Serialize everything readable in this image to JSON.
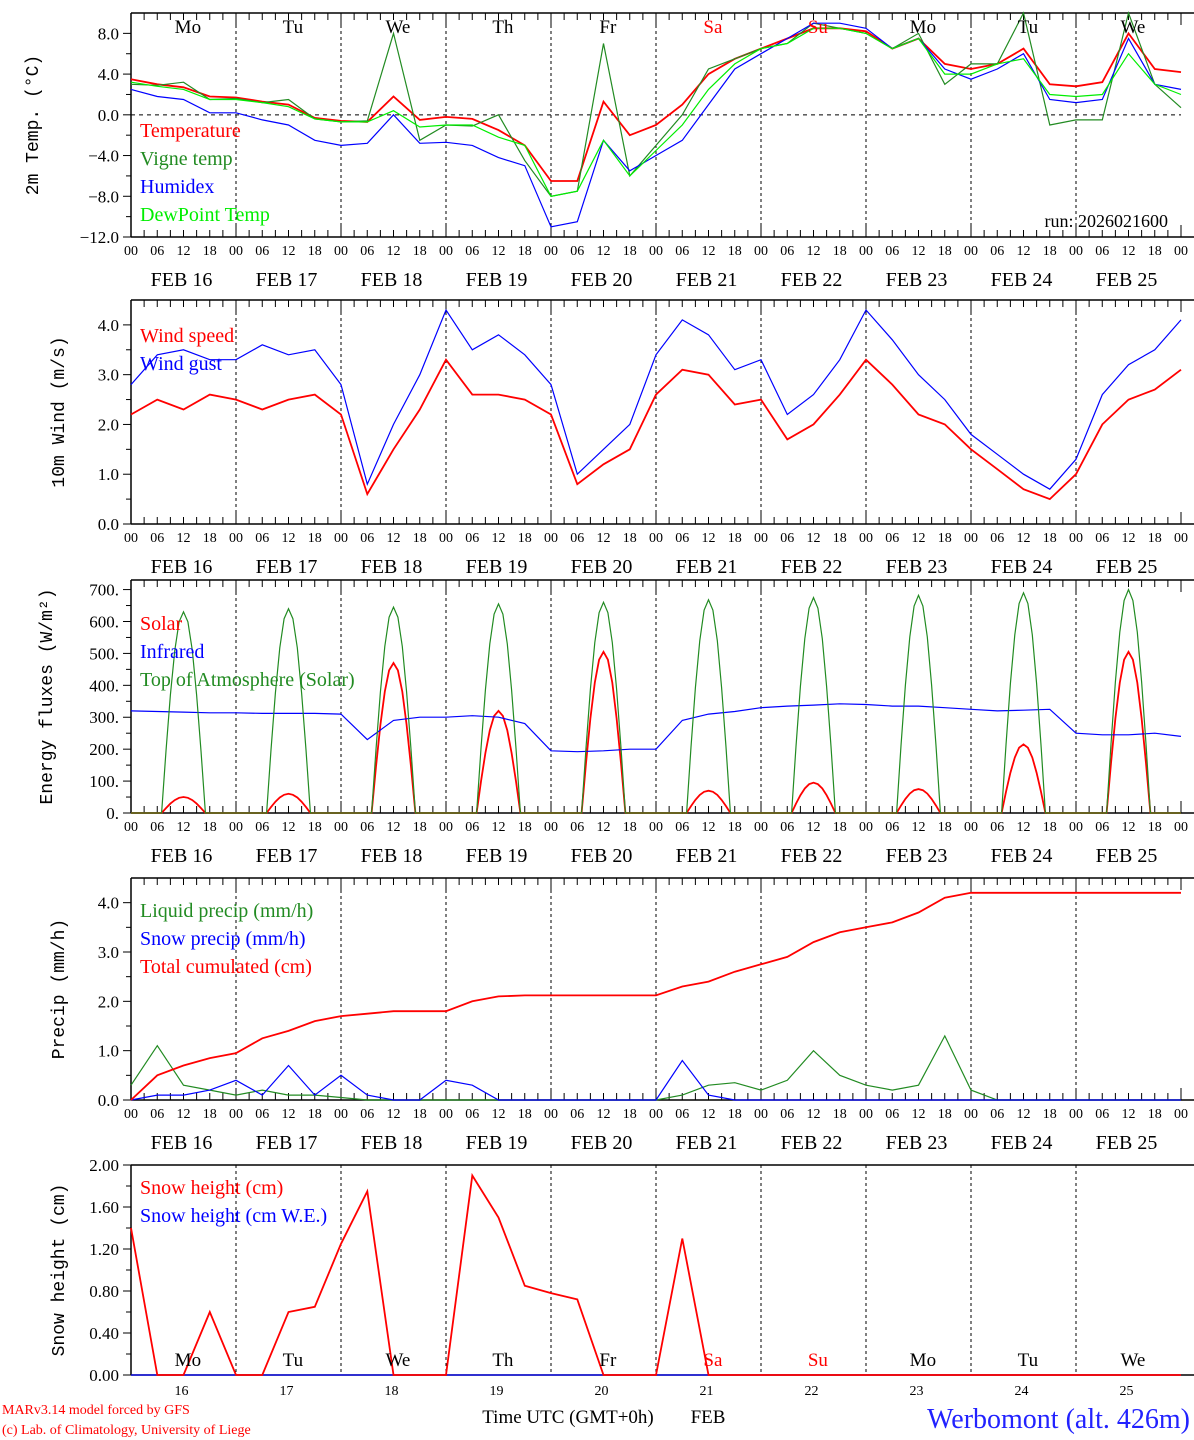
{
  "x_axis": {
    "hour_ticks": [
      "00",
      "06",
      "12",
      "18"
    ],
    "final_tick": "00",
    "dates": [
      "FEB 16",
      "FEB 17",
      "FEB 18",
      "FEB 19",
      "FEB 20",
      "FEB 21",
      "FEB 22",
      "FEB 23",
      "FEB 24",
      "FEB 25"
    ],
    "day_numbers": [
      "16",
      "17",
      "18",
      "19",
      "20",
      "21",
      "22",
      "23",
      "24",
      "25"
    ],
    "weekdays": [
      "Mo",
      "Tu",
      "We",
      "Th",
      "Fr",
      "Sa",
      "Su",
      "Mo",
      "Tu",
      "We"
    ],
    "weekend": [
      false,
      false,
      false,
      false,
      false,
      true,
      true,
      false,
      false,
      false
    ],
    "weekday_color": "#000000",
    "weekend_color": "#ff0000",
    "xlabel": "Time UTC (GMT+0h)",
    "month": "FEB"
  },
  "footer": {
    "model": "MARv3.14 model forced by GFS",
    "credit": "(c) Lab. of Climatology, University of Liege",
    "station": "Werbomont (alt. 426m)"
  },
  "chart_data": [
    {
      "type": "line",
      "ylabel": "2m Temp. (°C)",
      "ylim": [
        -12,
        10
      ],
      "yticks": [
        -12,
        -8,
        -4,
        0,
        4,
        8
      ],
      "ytick_labels": [
        "−12.0",
        "−8.0",
        "−4.0",
        "0.0",
        "4.0",
        "8.0"
      ],
      "zero_line": true,
      "x_step_hours": 6,
      "annotation": "run: 2026021600",
      "series": [
        {
          "name": "Temperature",
          "color": "#ff0000",
          "values": [
            3.5,
            3.0,
            2.7,
            1.8,
            1.7,
            1.3,
            1.0,
            -0.3,
            -0.6,
            -0.7,
            1.8,
            -0.5,
            -0.2,
            -0.4,
            -1.5,
            -3.0,
            -6.5,
            -6.5,
            1.3,
            -2.0,
            -1.0,
            1.0,
            4.0,
            5.5,
            6.5,
            7.5,
            8.5,
            8.5,
            8.2,
            6.5,
            7.5,
            5.0,
            4.5,
            5.0,
            6.5,
            3.0,
            2.8,
            3.2,
            8.0,
            4.5,
            4.2
          ]
        },
        {
          "name": "Vigne temp",
          "color": "#228b22",
          "values": [
            3.0,
            2.9,
            3.2,
            1.5,
            1.6,
            1.2,
            1.5,
            -0.4,
            -0.7,
            -0.6,
            8.0,
            -2.5,
            -1.0,
            -1.1,
            0.0,
            -4.5,
            -8.0,
            -7.5,
            7.0,
            -6.0,
            -3.0,
            0.0,
            4.5,
            5.5,
            6.5,
            7.0,
            9.0,
            8.5,
            8.0,
            6.5,
            8.0,
            3.0,
            5.0,
            5.0,
            10.0,
            -1.0,
            -0.5,
            -0.5,
            11.0,
            3.0,
            0.7
          ]
        },
        {
          "name": "Humidex",
          "color": "#0000ff",
          "values": [
            2.5,
            1.8,
            1.5,
            0.2,
            0.2,
            -0.5,
            -1.0,
            -2.5,
            -3.0,
            -2.8,
            0.0,
            -2.8,
            -2.7,
            -3.0,
            -4.2,
            -5.0,
            -11.0,
            -10.5,
            -2.5,
            -5.5,
            -4.0,
            -2.5,
            1.0,
            4.5,
            6.0,
            7.5,
            9.0,
            9.0,
            8.5,
            6.5,
            7.5,
            4.5,
            3.5,
            4.5,
            6.0,
            1.5,
            1.2,
            1.5,
            7.5,
            3.0,
            2.5
          ]
        },
        {
          "name": "DewPoint Temp",
          "color": "#00ee00",
          "values": [
            3.2,
            2.8,
            2.5,
            1.5,
            1.5,
            1.2,
            0.8,
            -0.4,
            -0.7,
            -0.7,
            0.4,
            -1.2,
            -1.0,
            -1.0,
            -2.2,
            -3.0,
            -8.0,
            -7.5,
            -2.5,
            -6.0,
            -3.5,
            -1.0,
            2.5,
            5.0,
            6.5,
            7.0,
            8.5,
            8.5,
            8.0,
            6.5,
            7.5,
            4.0,
            4.0,
            5.0,
            5.5,
            2.0,
            1.8,
            2.0,
            6.0,
            3.0,
            2.0
          ]
        }
      ]
    },
    {
      "type": "line",
      "ylabel": "10m Wind (m/s)",
      "ylim": [
        0,
        4.5
      ],
      "yticks": [
        0,
        1,
        2,
        3,
        4
      ],
      "ytick_labels": [
        "0.0",
        "1.0",
        "2.0",
        "3.0",
        "4.0"
      ],
      "x_step_hours": 6,
      "series": [
        {
          "name": "Wind speed",
          "color": "#ff0000",
          "values": [
            2.2,
            2.5,
            2.3,
            2.6,
            2.5,
            2.3,
            2.5,
            2.6,
            2.2,
            0.6,
            1.5,
            2.3,
            3.3,
            2.6,
            2.6,
            2.5,
            2.2,
            0.8,
            1.2,
            1.5,
            2.6,
            3.1,
            3.0,
            2.4,
            2.5,
            1.7,
            2.0,
            2.6,
            3.3,
            2.8,
            2.2,
            2.0,
            1.5,
            1.1,
            0.7,
            0.5,
            1.0,
            2.0,
            2.5,
            2.7,
            3.1
          ]
        },
        {
          "name": "Wind gust",
          "color": "#0000ff",
          "values": [
            2.8,
            3.4,
            3.5,
            3.3,
            3.3,
            3.6,
            3.4,
            3.5,
            2.8,
            0.8,
            2.0,
            3.0,
            4.3,
            3.5,
            3.8,
            3.4,
            2.8,
            1.0,
            1.5,
            2.0,
            3.4,
            4.1,
            3.8,
            3.1,
            3.3,
            2.2,
            2.6,
            3.3,
            4.3,
            3.7,
            3.0,
            2.5,
            1.8,
            1.4,
            1.0,
            0.7,
            1.3,
            2.6,
            3.2,
            3.5,
            4.1
          ]
        }
      ]
    },
    {
      "type": "line",
      "ylabel": "Energy fluxes (W/m²)",
      "ylim": [
        0,
        730
      ],
      "yticks": [
        0,
        100,
        200,
        300,
        400,
        500,
        600,
        700
      ],
      "ytick_labels": [
        "0.",
        "100.",
        "200.",
        "300.",
        "400.",
        "500.",
        "600.",
        "700."
      ],
      "x_step_hours": 6,
      "daylight_hours": [
        7,
        17
      ],
      "series": [
        {
          "name": "Solar",
          "color": "#ff0000",
          "daily_peak": [
            50,
            60,
            470,
            320,
            505,
            70,
            95,
            75,
            215,
            505
          ]
        },
        {
          "name": "Infrared",
          "color": "#0000ff",
          "values": [
            320,
            318,
            316,
            314,
            314,
            312,
            312,
            312,
            310,
            230,
            290,
            300,
            300,
            305,
            300,
            280,
            195,
            192,
            195,
            200,
            200,
            290,
            310,
            318,
            330,
            335,
            338,
            342,
            340,
            335,
            335,
            330,
            325,
            320,
            322,
            325,
            250,
            245,
            245,
            250,
            240
          ]
        },
        {
          "name": "Top of Atmosphere (Solar)",
          "color": "#228b22",
          "daily_peak": [
            630,
            640,
            645,
            655,
            660,
            668,
            675,
            682,
            690,
            700
          ]
        }
      ]
    },
    {
      "type": "line",
      "ylabel": "Precip (mm/h)",
      "ylim": [
        0,
        4.5
      ],
      "yticks": [
        0,
        1,
        2,
        3,
        4
      ],
      "ytick_labels": [
        "0.0",
        "1.0",
        "2.0",
        "3.0",
        "4.0"
      ],
      "x_step_hours": 6,
      "series": [
        {
          "name": "Liquid precip (mm/h)",
          "color": "#228b22",
          "values": [
            0.3,
            1.1,
            0.3,
            0.2,
            0.1,
            0.2,
            0.1,
            0.1,
            0.05,
            0,
            0,
            0,
            0,
            0,
            0,
            0,
            0,
            0,
            0,
            0,
            0,
            0.1,
            0.3,
            0.35,
            0.2,
            0.4,
            1.0,
            0.5,
            0.3,
            0.2,
            0.3,
            1.3,
            0.2,
            0,
            0,
            0,
            0,
            0,
            0,
            0,
            0
          ]
        },
        {
          "name": "Snow precip (mm/h)",
          "color": "#0000ff",
          "values": [
            0,
            0.1,
            0.1,
            0.2,
            0.4,
            0.1,
            0.7,
            0.1,
            0.5,
            0.1,
            0,
            0,
            0.4,
            0.3,
            0,
            0,
            0,
            0,
            0,
            0,
            0,
            0.8,
            0.1,
            0,
            0,
            0,
            0,
            0,
            0,
            0,
            0,
            0,
            0,
            0,
            0,
            0,
            0,
            0,
            0,
            0,
            0
          ]
        },
        {
          "name": "Total cumulated (cm)",
          "color": "#ff0000",
          "values": [
            0,
            0.5,
            0.7,
            0.85,
            0.95,
            1.25,
            1.4,
            1.6,
            1.7,
            1.75,
            1.8,
            1.8,
            1.8,
            2.0,
            2.1,
            2.12,
            2.12,
            2.12,
            2.12,
            2.12,
            2.12,
            2.3,
            2.4,
            2.6,
            2.75,
            2.9,
            3.2,
            3.4,
            3.5,
            3.6,
            3.8,
            4.1,
            4.2,
            4.2,
            4.2,
            4.2,
            4.2,
            4.2,
            4.2,
            4.2,
            4.2
          ]
        }
      ]
    },
    {
      "type": "line",
      "ylabel": "Snow height (cm)",
      "ylim": [
        0,
        2
      ],
      "yticks": [
        0,
        0.4,
        0.8,
        1.2,
        1.6,
        2.0
      ],
      "ytick_labels": [
        "0.00",
        "0.40",
        "0.80",
        "1.20",
        "1.60",
        "2.00"
      ],
      "x_step_hours": 6,
      "series": [
        {
          "name": "Snow height (cm W.E.)",
          "color": "#0000ff",
          "values": [
            0,
            0,
            0,
            0,
            0,
            0,
            0,
            0,
            0,
            0,
            0,
            0,
            0,
            0,
            0,
            0,
            0,
            0,
            0,
            0,
            0,
            0,
            0,
            0,
            0,
            0,
            0,
            0,
            0,
            0,
            0,
            0,
            0,
            0,
            0,
            0,
            0,
            0,
            0,
            0,
            0
          ]
        },
        {
          "name": "Snow height (cm)",
          "color": "#ff0000",
          "values": [
            1.4,
            0,
            0,
            0.6,
            0,
            0,
            0.6,
            0.65,
            1.25,
            1.75,
            0,
            0,
            0,
            1.9,
            1.5,
            0.85,
            0.78,
            0.72,
            0,
            0,
            0,
            1.3,
            0,
            0,
            0,
            0,
            0,
            0,
            0,
            0,
            0,
            0,
            0,
            0,
            0,
            0,
            0,
            0,
            0,
            0,
            0
          ]
        }
      ]
    }
  ]
}
